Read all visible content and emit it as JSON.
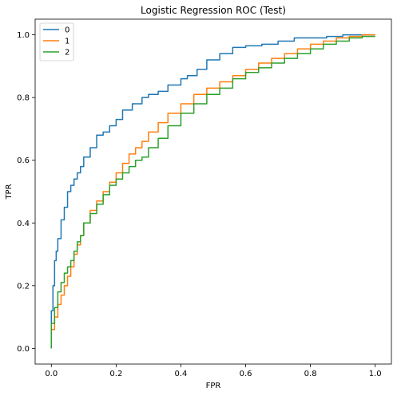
{
  "chart_data": {
    "type": "line",
    "title": "Logistic Regression ROC (Test)",
    "xlabel": "FPR",
    "ylabel": "TPR",
    "xlim": [
      -0.05,
      1.05
    ],
    "ylim": [
      -0.05,
      1.05
    ],
    "xticks": [
      "0.0",
      "0.2",
      "0.4",
      "0.6",
      "0.8",
      "1.0"
    ],
    "yticks": [
      "0.0",
      "0.2",
      "0.4",
      "0.6",
      "0.8",
      "1.0"
    ],
    "xtick_values": [
      0,
      0.2,
      0.4,
      0.6,
      0.8,
      1.0
    ],
    "ytick_values": [
      0,
      0.2,
      0.4,
      0.6,
      0.8,
      1.0
    ],
    "grid": false,
    "legend_position": "top-left",
    "series": [
      {
        "name": "0",
        "color": "#1f77b4",
        "x": [
          0,
          0.005,
          0.01,
          0.015,
          0.02,
          0.03,
          0.04,
          0.05,
          0.06,
          0.07,
          0.08,
          0.09,
          0.1,
          0.12,
          0.14,
          0.16,
          0.18,
          0.2,
          0.22,
          0.25,
          0.28,
          0.3,
          0.33,
          0.36,
          0.4,
          0.42,
          0.45,
          0.48,
          0.52,
          0.56,
          0.6,
          0.65,
          0.7,
          0.75,
          0.8,
          0.85,
          0.9,
          0.95,
          1.0
        ],
        "y": [
          0,
          0.12,
          0.2,
          0.28,
          0.31,
          0.35,
          0.41,
          0.45,
          0.5,
          0.52,
          0.54,
          0.56,
          0.58,
          0.61,
          0.64,
          0.68,
          0.69,
          0.71,
          0.73,
          0.76,
          0.78,
          0.8,
          0.81,
          0.82,
          0.84,
          0.86,
          0.87,
          0.89,
          0.92,
          0.94,
          0.96,
          0.965,
          0.97,
          0.98,
          0.99,
          0.99,
          0.995,
          1.0,
          1.0
        ]
      },
      {
        "name": "1",
        "color": "#ff7f0e",
        "x": [
          0,
          0.01,
          0.02,
          0.03,
          0.04,
          0.05,
          0.06,
          0.07,
          0.08,
          0.09,
          0.1,
          0.12,
          0.14,
          0.16,
          0.18,
          0.2,
          0.22,
          0.24,
          0.26,
          0.28,
          0.3,
          0.33,
          0.36,
          0.4,
          0.44,
          0.48,
          0.52,
          0.56,
          0.6,
          0.64,
          0.68,
          0.72,
          0.76,
          0.8,
          0.84,
          0.88,
          0.92,
          0.96,
          1.0
        ],
        "y": [
          0,
          0.06,
          0.1,
          0.14,
          0.17,
          0.2,
          0.23,
          0.26,
          0.3,
          0.33,
          0.36,
          0.4,
          0.44,
          0.47,
          0.5,
          0.53,
          0.56,
          0.59,
          0.62,
          0.64,
          0.66,
          0.69,
          0.72,
          0.75,
          0.78,
          0.81,
          0.83,
          0.85,
          0.87,
          0.89,
          0.91,
          0.925,
          0.94,
          0.955,
          0.97,
          0.98,
          0.99,
          0.995,
          1.0
        ]
      },
      {
        "name": "2",
        "color": "#2ca02c",
        "x": [
          0,
          0.01,
          0.02,
          0.03,
          0.04,
          0.05,
          0.06,
          0.07,
          0.08,
          0.09,
          0.1,
          0.12,
          0.14,
          0.16,
          0.18,
          0.2,
          0.22,
          0.24,
          0.26,
          0.28,
          0.3,
          0.33,
          0.36,
          0.4,
          0.44,
          0.48,
          0.52,
          0.56,
          0.6,
          0.64,
          0.68,
          0.72,
          0.76,
          0.8,
          0.84,
          0.88,
          0.92,
          0.96,
          1.0
        ],
        "y": [
          0,
          0.08,
          0.13,
          0.18,
          0.21,
          0.24,
          0.26,
          0.28,
          0.31,
          0.34,
          0.36,
          0.4,
          0.43,
          0.46,
          0.49,
          0.52,
          0.54,
          0.56,
          0.58,
          0.6,
          0.61,
          0.64,
          0.67,
          0.71,
          0.75,
          0.78,
          0.81,
          0.83,
          0.86,
          0.88,
          0.895,
          0.91,
          0.925,
          0.94,
          0.955,
          0.97,
          0.98,
          0.99,
          0.995
        ]
      }
    ]
  }
}
